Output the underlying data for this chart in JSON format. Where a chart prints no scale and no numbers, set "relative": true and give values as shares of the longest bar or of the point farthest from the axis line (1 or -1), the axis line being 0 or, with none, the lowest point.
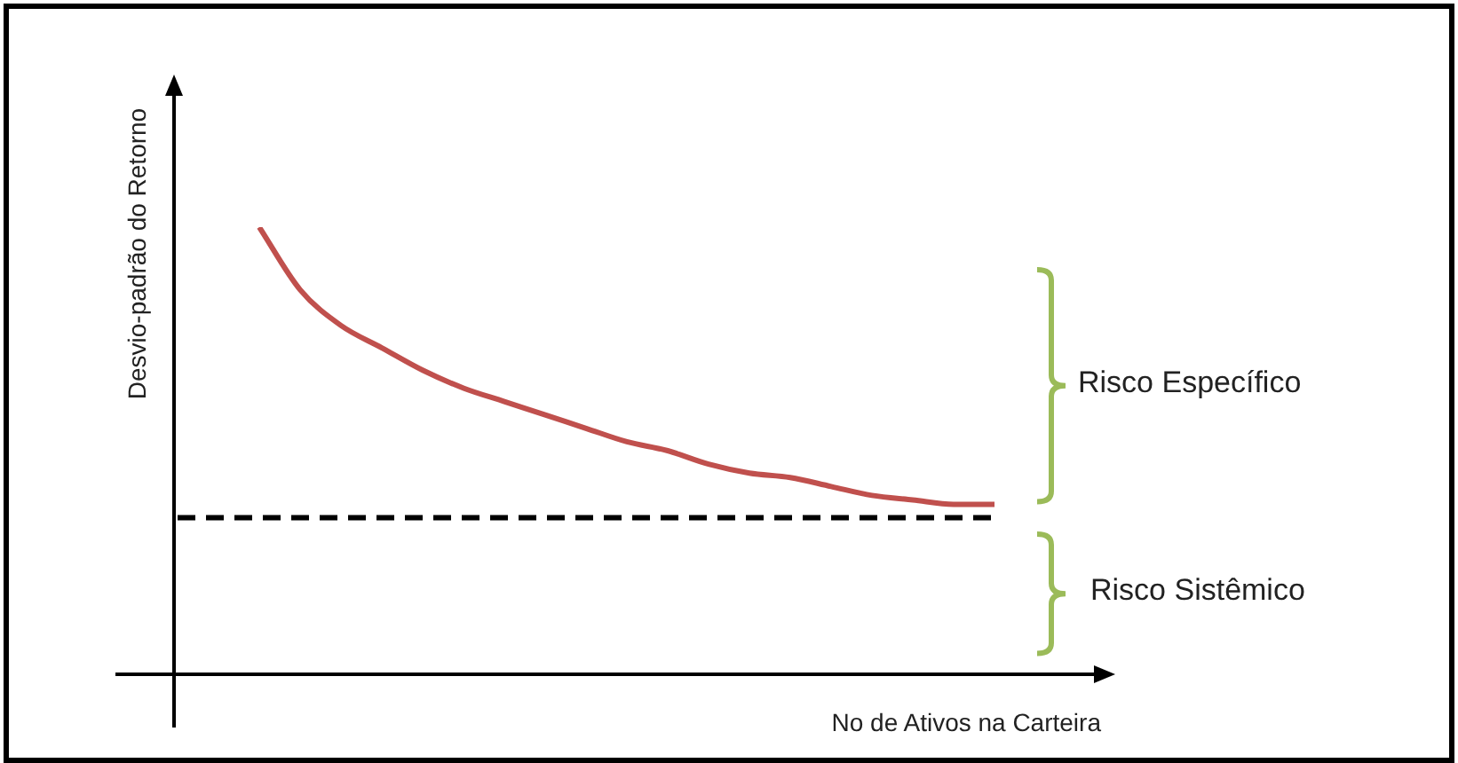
{
  "chart_data": {
    "type": "line",
    "relative": true,
    "xlabel": "No de Ativos na Carteira",
    "ylabel": "Desvio-padrão do Retorno",
    "categories": [
      null,
      null,
      null,
      null,
      null,
      null,
      null,
      null,
      null,
      null,
      null,
      null,
      null,
      null,
      null,
      null,
      null,
      null,
      null,
      null,
      null
    ],
    "series": [
      {
        "color": "#c0504d",
        "line_style": "solid",
        "values": [
          null,
          null,
          1,
          0.86,
          0.78,
          0.73,
          0.68,
          0.64,
          0.61,
          0.58,
          0.55,
          0.52,
          0.5,
          0.47,
          0.45,
          0.44,
          0.42,
          0.4,
          0.39,
          0.38,
          0.38
        ]
      },
      {
        "color": "#000000",
        "line_style": "dashed",
        "values": [
          0.35,
          0.35,
          0.35,
          0.35,
          0.35,
          0.35,
          0.35,
          0.35,
          0.35,
          0.35,
          0.35,
          0.35,
          0.35,
          0.35,
          0.35,
          0.35,
          0.35,
          0.35,
          0.35,
          0.35,
          0.35
        ]
      }
    ],
    "annotations": [
      "Risco Específico",
      "Risco Sistêmico"
    ],
    "legend": false,
    "marker": "none"
  }
}
